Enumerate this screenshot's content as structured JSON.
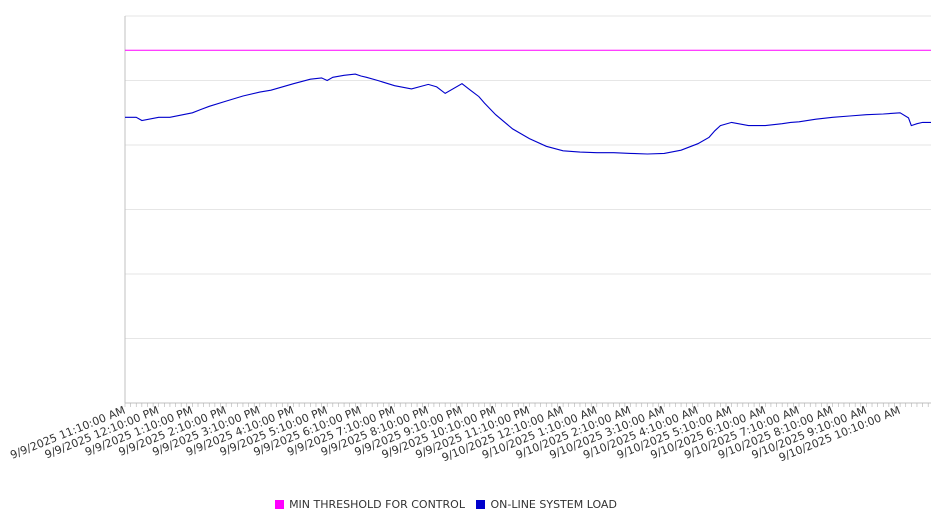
{
  "chart_data": {
    "type": "line",
    "title": "",
    "xlabel": "",
    "ylabel": "",
    "grid": true,
    "legend_position": "bottom-center",
    "x_tick_labels": [
      "9/9/2025 11:10:00 AM",
      "9/9/2025 12:10:00 PM",
      "9/9/2025 1:10:00 PM",
      "9/9/2025 2:10:00 PM",
      "9/9/2025 3:10:00 PM",
      "9/9/2025 4:10:00 PM",
      "9/9/2025 5:10:00 PM",
      "9/9/2025 6:10:00 PM",
      "9/9/2025 7:10:00 PM",
      "9/9/2025 8:10:00 PM",
      "9/9/2025 9:10:00 PM",
      "9/9/2025 10:10:00 PM",
      "9/9/2025 11:10:00 PM",
      "9/10/2025 12:10:00 AM",
      "9/10/2025 1:10:00 AM",
      "9/10/2025 2:10:00 AM",
      "9/10/2025 3:10:00 AM",
      "9/10/2025 4:10:00 AM",
      "9/10/2025 5:10:00 AM",
      "9/10/2025 6:10:00 AM",
      "9/10/2025 7:10:00 AM",
      "9/10/2025 8:10:00 AM",
      "9/10/2025 9:10:00 AM",
      "9/10/2025 10:10:00 AM"
    ],
    "x_range": [
      0,
      1435
    ],
    "ylim": [
      0,
      6
    ],
    "series": [
      {
        "name": "MIN THRESHOLD FOR CONTROL",
        "color": "#ff00ff",
        "x": [
          0,
          1435
        ],
        "y": [
          5.47,
          5.47
        ]
      },
      {
        "name": "ON-LINE SYSTEM LOAD",
        "color": "#0000cc",
        "x": [
          0,
          20,
          30,
          60,
          80,
          120,
          135,
          150,
          180,
          210,
          240,
          260,
          300,
          330,
          350,
          360,
          370,
          390,
          410,
          420,
          430,
          450,
          480,
          510,
          540,
          555,
          570,
          600,
          615,
          630,
          640,
          660,
          690,
          720,
          750,
          780,
          810,
          840,
          870,
          900,
          930,
          960,
          990,
          1020,
          1040,
          1050,
          1060,
          1080,
          1110,
          1140,
          1170,
          1185,
          1200,
          1230,
          1260,
          1290,
          1320,
          1350,
          1380,
          1395,
          1400,
          1410,
          1420,
          1435
        ],
        "y": [
          4.43,
          4.43,
          4.38,
          4.43,
          4.43,
          4.5,
          4.55,
          4.6,
          4.68,
          4.76,
          4.82,
          4.85,
          4.95,
          5.02,
          5.04,
          5.0,
          5.05,
          5.08,
          5.1,
          5.07,
          5.05,
          5.0,
          4.92,
          4.87,
          4.94,
          4.9,
          4.8,
          4.95,
          4.85,
          4.75,
          4.65,
          4.47,
          4.25,
          4.1,
          3.98,
          3.91,
          3.89,
          3.88,
          3.88,
          3.87,
          3.86,
          3.87,
          3.92,
          4.02,
          4.12,
          4.22,
          4.3,
          4.35,
          4.3,
          4.3,
          4.33,
          4.35,
          4.36,
          4.4,
          4.43,
          4.45,
          4.47,
          4.48,
          4.5,
          4.42,
          4.3,
          4.33,
          4.35,
          4.35
        ]
      }
    ]
  },
  "legend": {
    "items": [
      {
        "label": "MIN THRESHOLD FOR CONTROL",
        "color": "#ff00ff"
      },
      {
        "label": "ON-LINE SYSTEM LOAD",
        "color": "#0000cc"
      }
    ]
  }
}
